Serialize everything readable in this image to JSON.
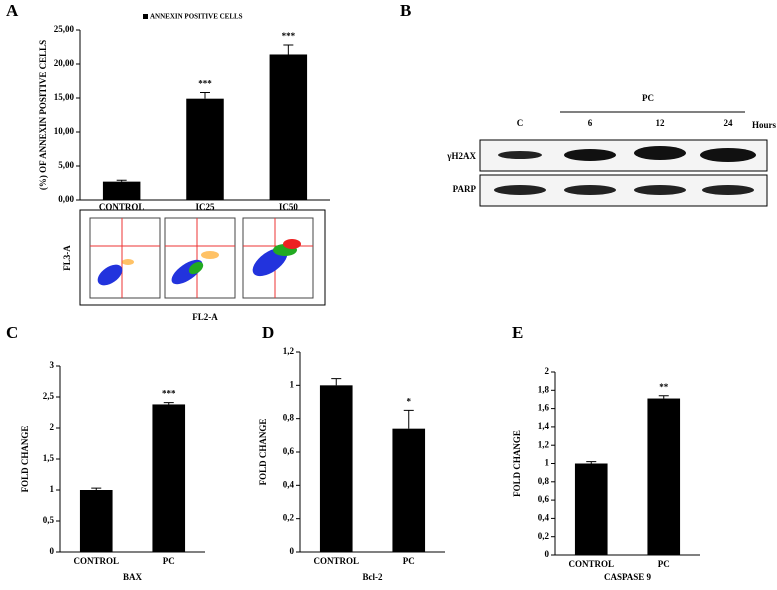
{
  "panels": [
    "A",
    "B",
    "C",
    "D",
    "E"
  ],
  "chart_data": [
    {
      "type": "bar",
      "title": "ANNEXIN POSITIVE CELLS",
      "y_label": "(%) OF ANNEXIN POSITIVE CELLS",
      "categories": [
        "CONTROL",
        "IC25",
        "IC50"
      ],
      "values": [
        2.7,
        14.9,
        21.4
      ],
      "errors": [
        0.2,
        0.9,
        1.4
      ],
      "significance": [
        null,
        "***",
        "***"
      ],
      "color": "#000000",
      "ylim": [
        0,
        25
      ],
      "yticks": [
        {
          "value": 0,
          "label": "0,00"
        },
        {
          "value": 5,
          "label": "5,00"
        },
        {
          "value": 10,
          "label": "10,00"
        },
        {
          "value": 15,
          "label": "15,00"
        },
        {
          "value": 20,
          "label": "20,00"
        },
        {
          "value": 25,
          "label": "25,00"
        }
      ]
    },
    {
      "type": "bar",
      "x_label": "BAX",
      "y_label": "FOLD CHANGE",
      "categories": [
        "CONTROL",
        "PC"
      ],
      "values": [
        1.0,
        2.38
      ],
      "errors": [
        0.03,
        0.03
      ],
      "significance": [
        null,
        "***"
      ],
      "color": "#000000",
      "ylim": [
        0,
        3
      ],
      "yticks": [
        0,
        {
          "value": 0.5,
          "label": "0,5"
        },
        1,
        {
          "value": 1.5,
          "label": "1,5"
        },
        2,
        {
          "value": 2.5,
          "label": "2,5"
        },
        3
      ]
    },
    {
      "type": "bar",
      "x_label": "Bcl-2",
      "y_label": "FOLD CHANGE",
      "categories": [
        "CONTROL",
        "PC"
      ],
      "values": [
        1.0,
        0.74
      ],
      "errors": [
        0.04,
        0.11
      ],
      "significance": [
        null,
        "*"
      ],
      "color": "#000000",
      "ylim": [
        0,
        1.2
      ],
      "yticks": [
        0,
        {
          "value": 0.2,
          "label": "0,2"
        },
        {
          "value": 0.4,
          "label": "0,4"
        },
        {
          "value": 0.6,
          "label": "0,6"
        },
        {
          "value": 0.8,
          "label": "0,8"
        },
        1,
        {
          "value": 1.2,
          "label": "1,2"
        }
      ]
    },
    {
      "type": "bar",
      "x_label": "CASPASE 9",
      "y_label": "FOLD CHANGE",
      "categories": [
        "CONTROL",
        "PC"
      ],
      "values": [
        1.0,
        1.71
      ],
      "errors": [
        0.02,
        0.03
      ],
      "significance": [
        null,
        "**"
      ],
      "color": "#000000",
      "ylim": [
        0,
        2
      ],
      "yticks": [
        0,
        {
          "value": 0.2,
          "label": "0,2"
        },
        {
          "value": 0.4,
          "label": "0,4"
        },
        {
          "value": 0.6,
          "label": "0,6"
        },
        {
          "value": 0.8,
          "label": "0,8"
        },
        1,
        {
          "value": 1.2,
          "label": "1,2"
        },
        {
          "value": 1.4,
          "label": "1,4"
        },
        {
          "value": 1.6,
          "label": "1,6"
        },
        {
          "value": 1.8,
          "label": "1,8"
        },
        2
      ]
    }
  ],
  "blot": {
    "group_label": "PC",
    "lanes": [
      "C",
      "6",
      "12",
      "24"
    ],
    "unit": "Hours",
    "rows": [
      "γH2AX",
      "PARP"
    ]
  },
  "flow": {
    "y_label": "FL3-A",
    "x_label": "FL2-A"
  }
}
